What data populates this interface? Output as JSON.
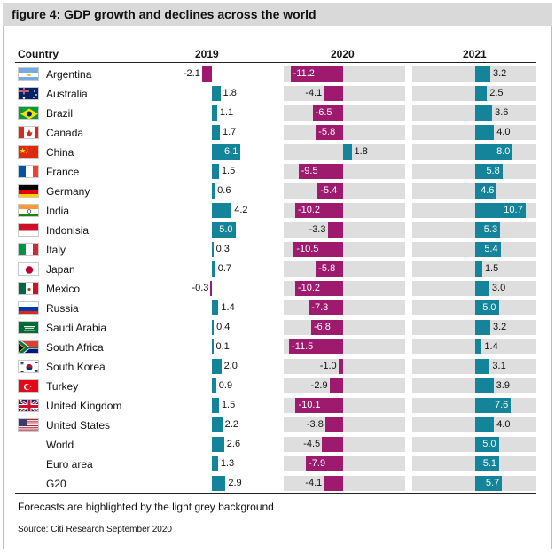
{
  "title": "figure 4: GDP growth and declines across the world",
  "footnote": "Forecasts are highlighted by the light grey background",
  "source": "Source: Citi Research September 2020",
  "colors": {
    "positive": "#14849a",
    "negative": "#9d1a6e",
    "forecast_bg": "#dedede"
  },
  "chart_data": {
    "type": "bar",
    "layout": "small-multiples-table",
    "row_header": "Country",
    "columns": [
      "2019",
      "2020",
      "2021"
    ],
    "forecast_columns": [
      "2020",
      "2021"
    ],
    "rows": [
      {
        "name": "Argentina",
        "flag": "argentina",
        "values": [
          -2.1,
          -11.2,
          3.2
        ]
      },
      {
        "name": "Australia",
        "flag": "australia",
        "values": [
          1.8,
          -4.1,
          2.5
        ]
      },
      {
        "name": "Brazil",
        "flag": "brazil",
        "values": [
          1.1,
          -6.5,
          3.6
        ]
      },
      {
        "name": "Canada",
        "flag": "canada",
        "values": [
          1.7,
          -5.8,
          4.0
        ]
      },
      {
        "name": "China",
        "flag": "china",
        "values": [
          6.1,
          1.8,
          8.0
        ]
      },
      {
        "name": "France",
        "flag": "france",
        "values": [
          1.5,
          -9.5,
          5.8
        ]
      },
      {
        "name": "Germany",
        "flag": "germany",
        "values": [
          0.6,
          -5.4,
          4.6
        ]
      },
      {
        "name": "India",
        "flag": "india",
        "values": [
          4.2,
          -10.2,
          10.7
        ]
      },
      {
        "name": "Indonisia",
        "flag": "indonesia",
        "values": [
          5.0,
          -3.3,
          5.3
        ]
      },
      {
        "name": "Italy",
        "flag": "italy",
        "values": [
          0.3,
          -10.5,
          5.4
        ]
      },
      {
        "name": "Japan",
        "flag": "japan",
        "values": [
          0.7,
          -5.8,
          1.5
        ]
      },
      {
        "name": "Mexico",
        "flag": "mexico",
        "values": [
          -0.3,
          -10.2,
          3.0
        ]
      },
      {
        "name": "Russia",
        "flag": "russia",
        "values": [
          1.4,
          -7.3,
          5.0
        ]
      },
      {
        "name": "Saudi Arabia",
        "flag": "saudi-arabia",
        "values": [
          0.4,
          -6.8,
          3.2
        ]
      },
      {
        "name": "South Africa",
        "flag": "south-africa",
        "values": [
          0.1,
          -11.5,
          1.4
        ]
      },
      {
        "name": "South Korea",
        "flag": "south-korea",
        "values": [
          2.0,
          -1.0,
          3.1
        ]
      },
      {
        "name": "Turkey",
        "flag": "turkey",
        "values": [
          0.9,
          -2.9,
          3.9
        ]
      },
      {
        "name": "United Kingdom",
        "flag": "united-kingdom",
        "values": [
          1.5,
          -10.1,
          7.6
        ]
      },
      {
        "name": "United States",
        "flag": "united-states",
        "values": [
          2.2,
          -3.8,
          4.0
        ]
      },
      {
        "name": "World",
        "flag": null,
        "values": [
          2.6,
          -4.5,
          5.0
        ]
      },
      {
        "name": "Euro area",
        "flag": null,
        "values": [
          1.3,
          -7.9,
          5.1
        ]
      },
      {
        "name": "G20",
        "flag": null,
        "values": [
          2.9,
          -4.1,
          5.7
        ]
      }
    ]
  }
}
